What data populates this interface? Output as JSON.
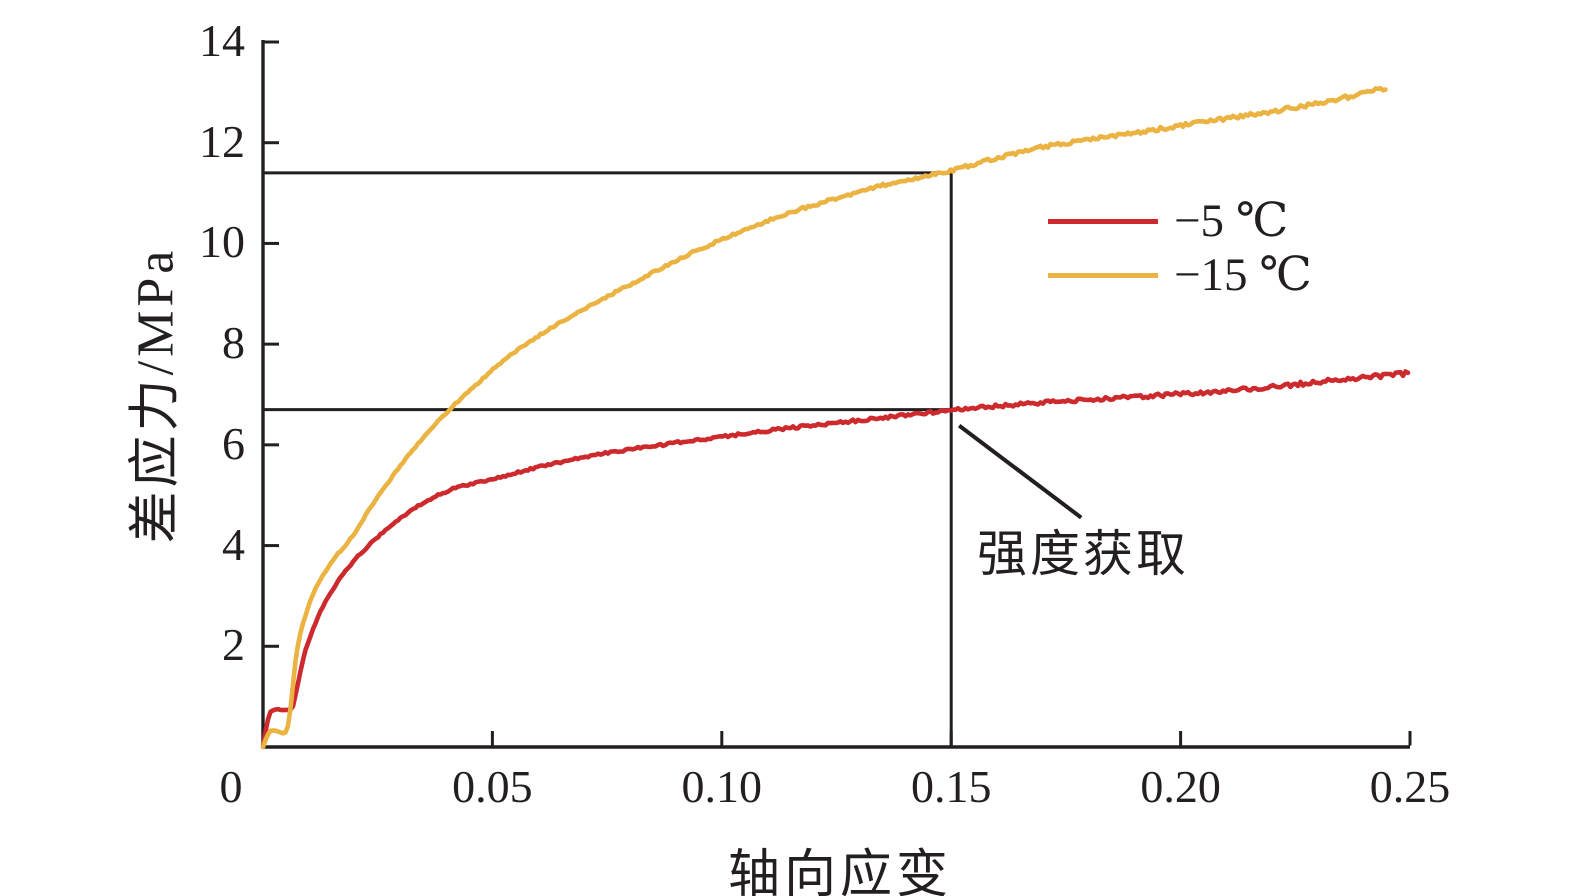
{
  "figure": {
    "background": "#ffffff",
    "axis_color": "#231f20"
  },
  "chart_data": {
    "type": "line",
    "title": "",
    "xlabel": "轴向应变",
    "ylabel": "差应力/MPa",
    "xlim": [
      0,
      0.25
    ],
    "ylim": [
      0,
      14
    ],
    "grid": false,
    "x_ticks": [
      0,
      0.05,
      0.1,
      0.15,
      0.2,
      0.25
    ],
    "x_tick_labels": [
      "0",
      "0.05",
      "0.10",
      "0.15",
      "0.20",
      "0.25"
    ],
    "y_ticks": [
      2,
      4,
      6,
      8,
      10,
      12,
      14
    ],
    "y_tick_labels": [
      "2",
      "4",
      "6",
      "8",
      "10",
      "12",
      "14"
    ],
    "legend_position": "upper-right-inside",
    "series": [
      {
        "name": "−5 ℃",
        "color": "#cd2a2e",
        "points": [
          [
            0,
            0
          ],
          [
            0.0008,
            0.45
          ],
          [
            0.0015,
            0.7
          ],
          [
            0.003,
            0.75
          ],
          [
            0.0045,
            0.73
          ],
          [
            0.006,
            0.74
          ],
          [
            0.0065,
            0.8
          ],
          [
            0.0075,
            1.2
          ],
          [
            0.0085,
            1.65
          ],
          [
            0.0095,
            2.0
          ],
          [
            0.0105,
            2.25
          ],
          [
            0.012,
            2.6
          ],
          [
            0.014,
            2.95
          ],
          [
            0.016,
            3.25
          ],
          [
            0.018,
            3.5
          ],
          [
            0.02,
            3.72
          ],
          [
            0.023,
            4.0
          ],
          [
            0.026,
            4.25
          ],
          [
            0.03,
            4.55
          ],
          [
            0.034,
            4.8
          ],
          [
            0.038,
            5.0
          ],
          [
            0.042,
            5.15
          ],
          [
            0.046,
            5.24
          ],
          [
            0.05,
            5.32
          ],
          [
            0.055,
            5.44
          ],
          [
            0.06,
            5.56
          ],
          [
            0.065,
            5.66
          ],
          [
            0.07,
            5.76
          ],
          [
            0.075,
            5.84
          ],
          [
            0.08,
            5.91
          ],
          [
            0.09,
            6.04
          ],
          [
            0.1,
            6.16
          ],
          [
            0.11,
            6.28
          ],
          [
            0.12,
            6.39
          ],
          [
            0.13,
            6.49
          ],
          [
            0.14,
            6.59
          ],
          [
            0.15,
            6.69
          ],
          [
            0.16,
            6.77
          ],
          [
            0.17,
            6.84
          ],
          [
            0.18,
            6.9
          ],
          [
            0.19,
            6.95
          ],
          [
            0.2,
            7.01
          ],
          [
            0.21,
            7.07
          ],
          [
            0.22,
            7.15
          ],
          [
            0.23,
            7.25
          ],
          [
            0.24,
            7.34
          ],
          [
            0.2496,
            7.42
          ]
        ]
      },
      {
        "name": "−15 ℃",
        "color": "#eab342",
        "points": [
          [
            0,
            0
          ],
          [
            0.0008,
            0.2
          ],
          [
            0.0015,
            0.32
          ],
          [
            0.0025,
            0.33
          ],
          [
            0.0035,
            0.3
          ],
          [
            0.0045,
            0.27
          ],
          [
            0.0052,
            0.3
          ],
          [
            0.0058,
            0.6
          ],
          [
            0.0065,
            1.2
          ],
          [
            0.0072,
            1.8
          ],
          [
            0.008,
            2.2
          ],
          [
            0.009,
            2.55
          ],
          [
            0.0105,
            2.95
          ],
          [
            0.012,
            3.25
          ],
          [
            0.014,
            3.55
          ],
          [
            0.016,
            3.8
          ],
          [
            0.018,
            4.0
          ],
          [
            0.02,
            4.25
          ],
          [
            0.023,
            4.7
          ],
          [
            0.026,
            5.1
          ],
          [
            0.03,
            5.6
          ],
          [
            0.034,
            6.05
          ],
          [
            0.039,
            6.55
          ],
          [
            0.044,
            7.0
          ],
          [
            0.048,
            7.32
          ],
          [
            0.052,
            7.65
          ],
          [
            0.057,
            7.98
          ],
          [
            0.062,
            8.28
          ],
          [
            0.068,
            8.6
          ],
          [
            0.074,
            8.9
          ],
          [
            0.08,
            9.18
          ],
          [
            0.087,
            9.52
          ],
          [
            0.095,
            9.88
          ],
          [
            0.105,
            10.28
          ],
          [
            0.115,
            10.62
          ],
          [
            0.125,
            10.9
          ],
          [
            0.135,
            11.15
          ],
          [
            0.145,
            11.35
          ],
          [
            0.15,
            11.44
          ],
          [
            0.16,
            11.7
          ],
          [
            0.17,
            11.92
          ],
          [
            0.18,
            12.06
          ],
          [
            0.19,
            12.2
          ],
          [
            0.2,
            12.34
          ],
          [
            0.21,
            12.48
          ],
          [
            0.22,
            12.62
          ],
          [
            0.23,
            12.78
          ],
          [
            0.24,
            12.98
          ],
          [
            0.245,
            13.1
          ]
        ]
      }
    ],
    "annotation": {
      "text": "强度获取",
      "strain": 0.15,
      "strength_minus5_MPa": 6.7,
      "strength_minus15_MPa": 11.4
    }
  }
}
